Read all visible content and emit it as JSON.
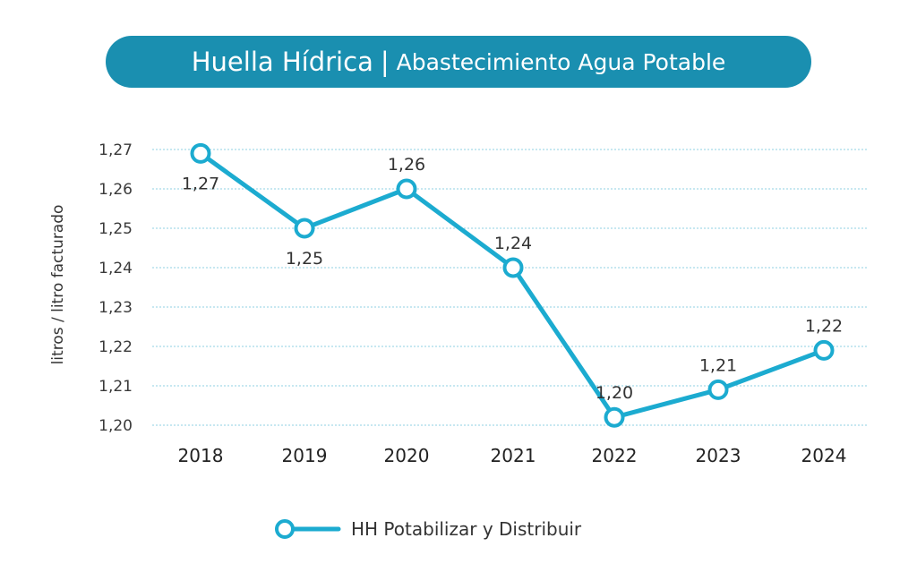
{
  "title": {
    "main": "Huella Hídrica",
    "separator": "|",
    "sub": "Abastecimiento Agua Potable"
  },
  "colors": {
    "title_bg": "#1a8fb0",
    "line": "#1cabd0",
    "grid": "#8fd0e3"
  },
  "chart_data": {
    "type": "line",
    "ylabel": "litros / litro facturado",
    "ylim": [
      1.2,
      1.27
    ],
    "yticks": [
      "1,20",
      "1,21",
      "1,22",
      "1,23",
      "1,24",
      "1,25",
      "1,26",
      "1,27"
    ],
    "ytick_values": [
      1.2,
      1.21,
      1.22,
      1.23,
      1.24,
      1.25,
      1.26,
      1.27
    ],
    "grid": true,
    "legend_position": "bottom",
    "categories": [
      "2018",
      "2019",
      "2020",
      "2021",
      "2022",
      "2023",
      "2024"
    ],
    "series": [
      {
        "name": "HH Potabilizar y Distribuir",
        "values": [
          1.269,
          1.25,
          1.26,
          1.24,
          1.202,
          1.209,
          1.219
        ],
        "labels": [
          "1,27",
          "1,25",
          "1,26",
          "1,24",
          "1,20",
          "1,21",
          "1,22"
        ],
        "label_positions": [
          "below",
          "below",
          "above",
          "above",
          "above",
          "above",
          "above"
        ]
      }
    ]
  }
}
